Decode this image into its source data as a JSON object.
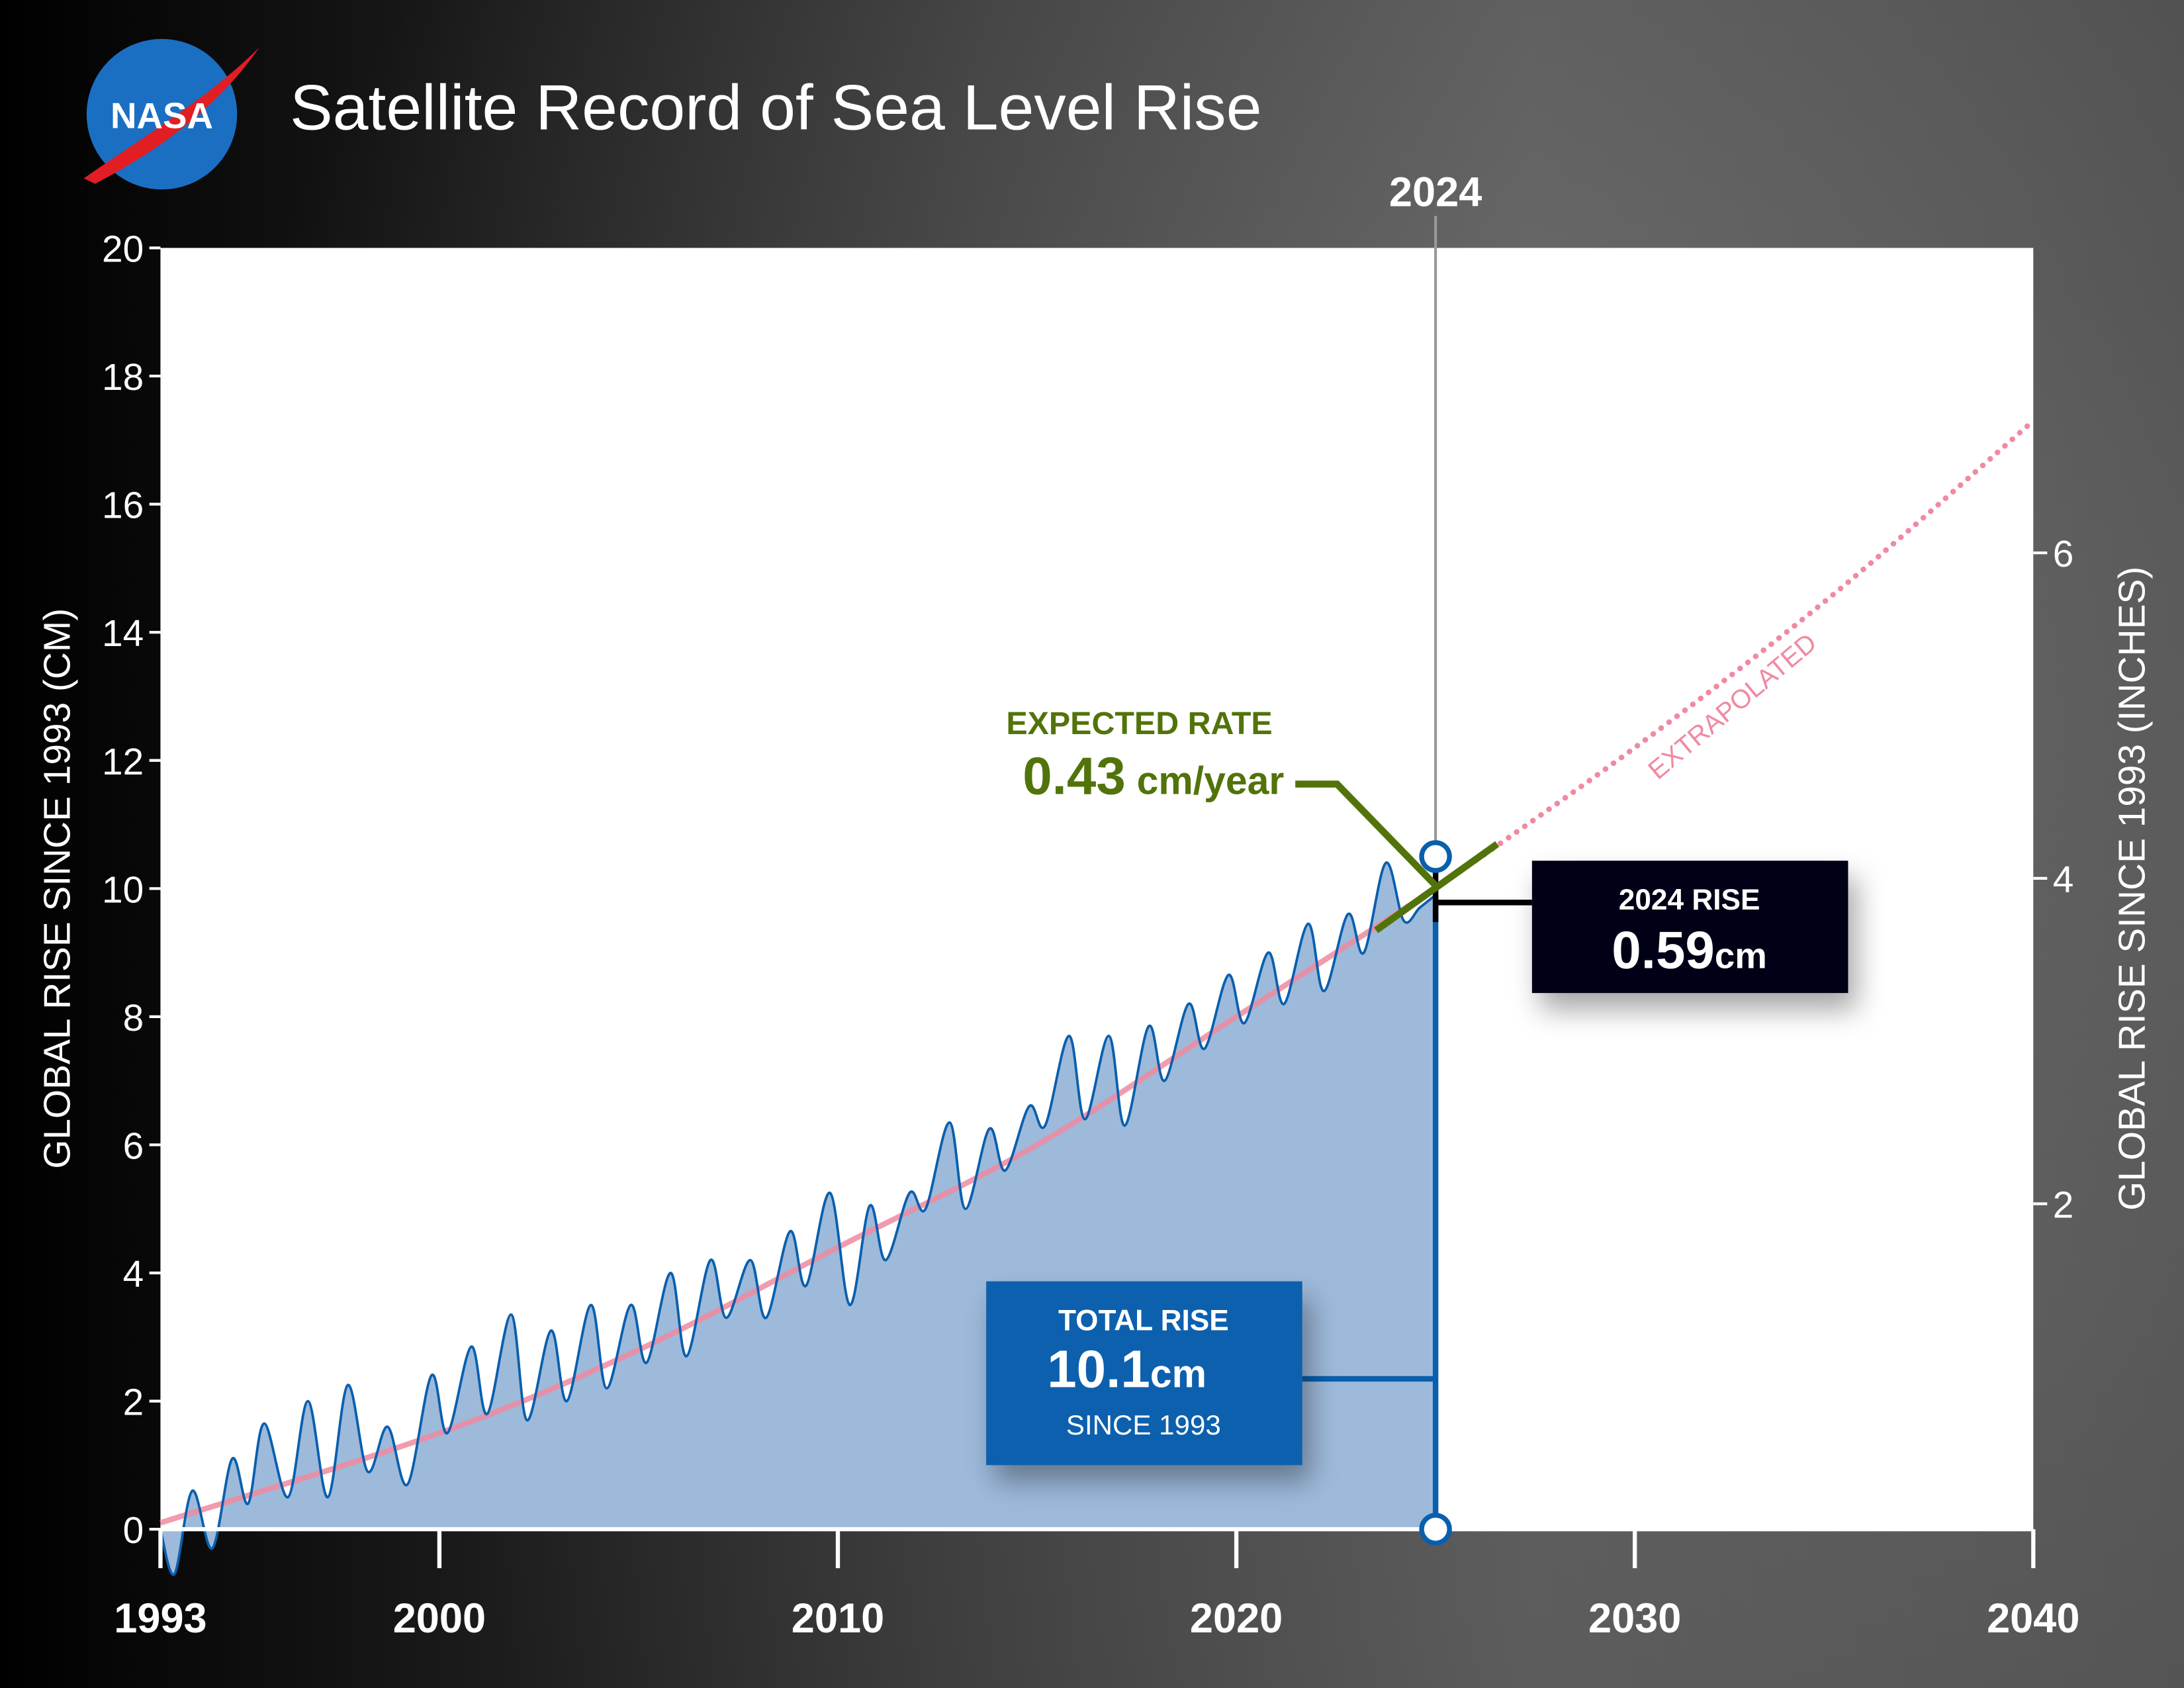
{
  "title": "Satellite Record of Sea Level Rise",
  "logo": {
    "text": "NASA"
  },
  "colors": {
    "fill": "#9dbadb",
    "line": "#0a5fad",
    "trend": "#f08aa0",
    "rate": "#52730a",
    "box_blue": "#0a61ad",
    "box_dark": "#030618"
  },
  "chart_data": {
    "type": "area",
    "title": "Satellite Record of Sea Level Rise",
    "ylabel": "GLOBAL RISE SINCE 1993 (CM)",
    "ylabel_right": "GLOBAL RISE SINCE 1993 (INCHES)",
    "xlim": [
      1993,
      2040
    ],
    "ylim": [
      0,
      20
    ],
    "x_ticks": [
      "1993",
      "2000",
      "2010",
      "2020",
      "2030",
      "2040"
    ],
    "y_ticks": [
      "0",
      "2",
      "4",
      "6",
      "8",
      "10",
      "12",
      "14",
      "16",
      "18",
      "20"
    ],
    "y_right_ticks": [
      "2",
      "4",
      "6"
    ],
    "grid": false,
    "marker_year_label": "2024",
    "marker_x": 2025.0,
    "observed": {
      "x": [
        1993.0,
        1993.35,
        1993.8,
        1994.3,
        1994.8,
        1995.2,
        1995.6,
        1996.2,
        1996.7,
        1997.2,
        1997.7,
        1998.2,
        1998.7,
        1999.2,
        1999.8,
        2000.2,
        2000.8,
        2001.2,
        2001.8,
        2002.2,
        2002.8,
        2003.2,
        2003.8,
        2004.2,
        2004.8,
        2005.2,
        2005.8,
        2006.2,
        2006.8,
        2007.2,
        2007.8,
        2008.2,
        2008.8,
        2009.2,
        2009.8,
        2010.3,
        2010.8,
        2011.2,
        2011.8,
        2012.2,
        2012.8,
        2013.2,
        2013.8,
        2014.2,
        2014.8,
        2015.2,
        2015.8,
        2016.2,
        2016.8,
        2017.2,
        2017.8,
        2018.2,
        2018.8,
        2019.2,
        2019.8,
        2020.2,
        2020.8,
        2021.2,
        2021.8,
        2022.2,
        2022.8,
        2023.2,
        2023.75,
        2024.2,
        2024.6,
        2025.0
      ],
      "y": [
        0.0,
        -0.7,
        0.6,
        -0.3,
        1.1,
        0.4,
        1.65,
        0.5,
        2.0,
        0.5,
        2.25,
        0.9,
        1.6,
        0.7,
        2.4,
        1.5,
        2.85,
        1.8,
        3.35,
        1.7,
        3.1,
        2.0,
        3.5,
        2.2,
        3.5,
        2.6,
        4.0,
        2.7,
        4.2,
        3.3,
        4.2,
        3.3,
        4.65,
        3.8,
        5.25,
        3.5,
        5.05,
        4.2,
        5.25,
        5.0,
        6.35,
        5.0,
        6.25,
        5.6,
        6.6,
        6.3,
        7.7,
        6.4,
        7.7,
        6.3,
        7.85,
        7.0,
        8.2,
        7.5,
        8.65,
        7.9,
        9.0,
        8.2,
        9.45,
        8.4,
        9.6,
        9.0,
        10.4,
        9.5,
        9.7,
        9.9
      ]
    },
    "trend": {
      "x": [
        1993,
        2000,
        2005,
        2010,
        2015,
        2020,
        2025
      ],
      "y": [
        0.1,
        1.5,
        2.8,
        4.4,
        6.0,
        8.0,
        10.0
      ]
    },
    "extrapolated": {
      "label": "EXTRAPOLATED",
      "x": [
        2025,
        2030,
        2035,
        2040
      ],
      "y": [
        10.0,
        12.2,
        14.6,
        17.3
      ]
    },
    "expected_rate": {
      "label": "EXPECTED RATE",
      "value": "0.43",
      "unit": "cm/year"
    },
    "rise_2024": {
      "label": "2024 RISE",
      "value": "0.59",
      "unit": "cm"
    },
    "total_rise": {
      "label": "TOTAL RISE",
      "value": "10.1",
      "unit": "cm",
      "sub": "SINCE 1993"
    }
  }
}
